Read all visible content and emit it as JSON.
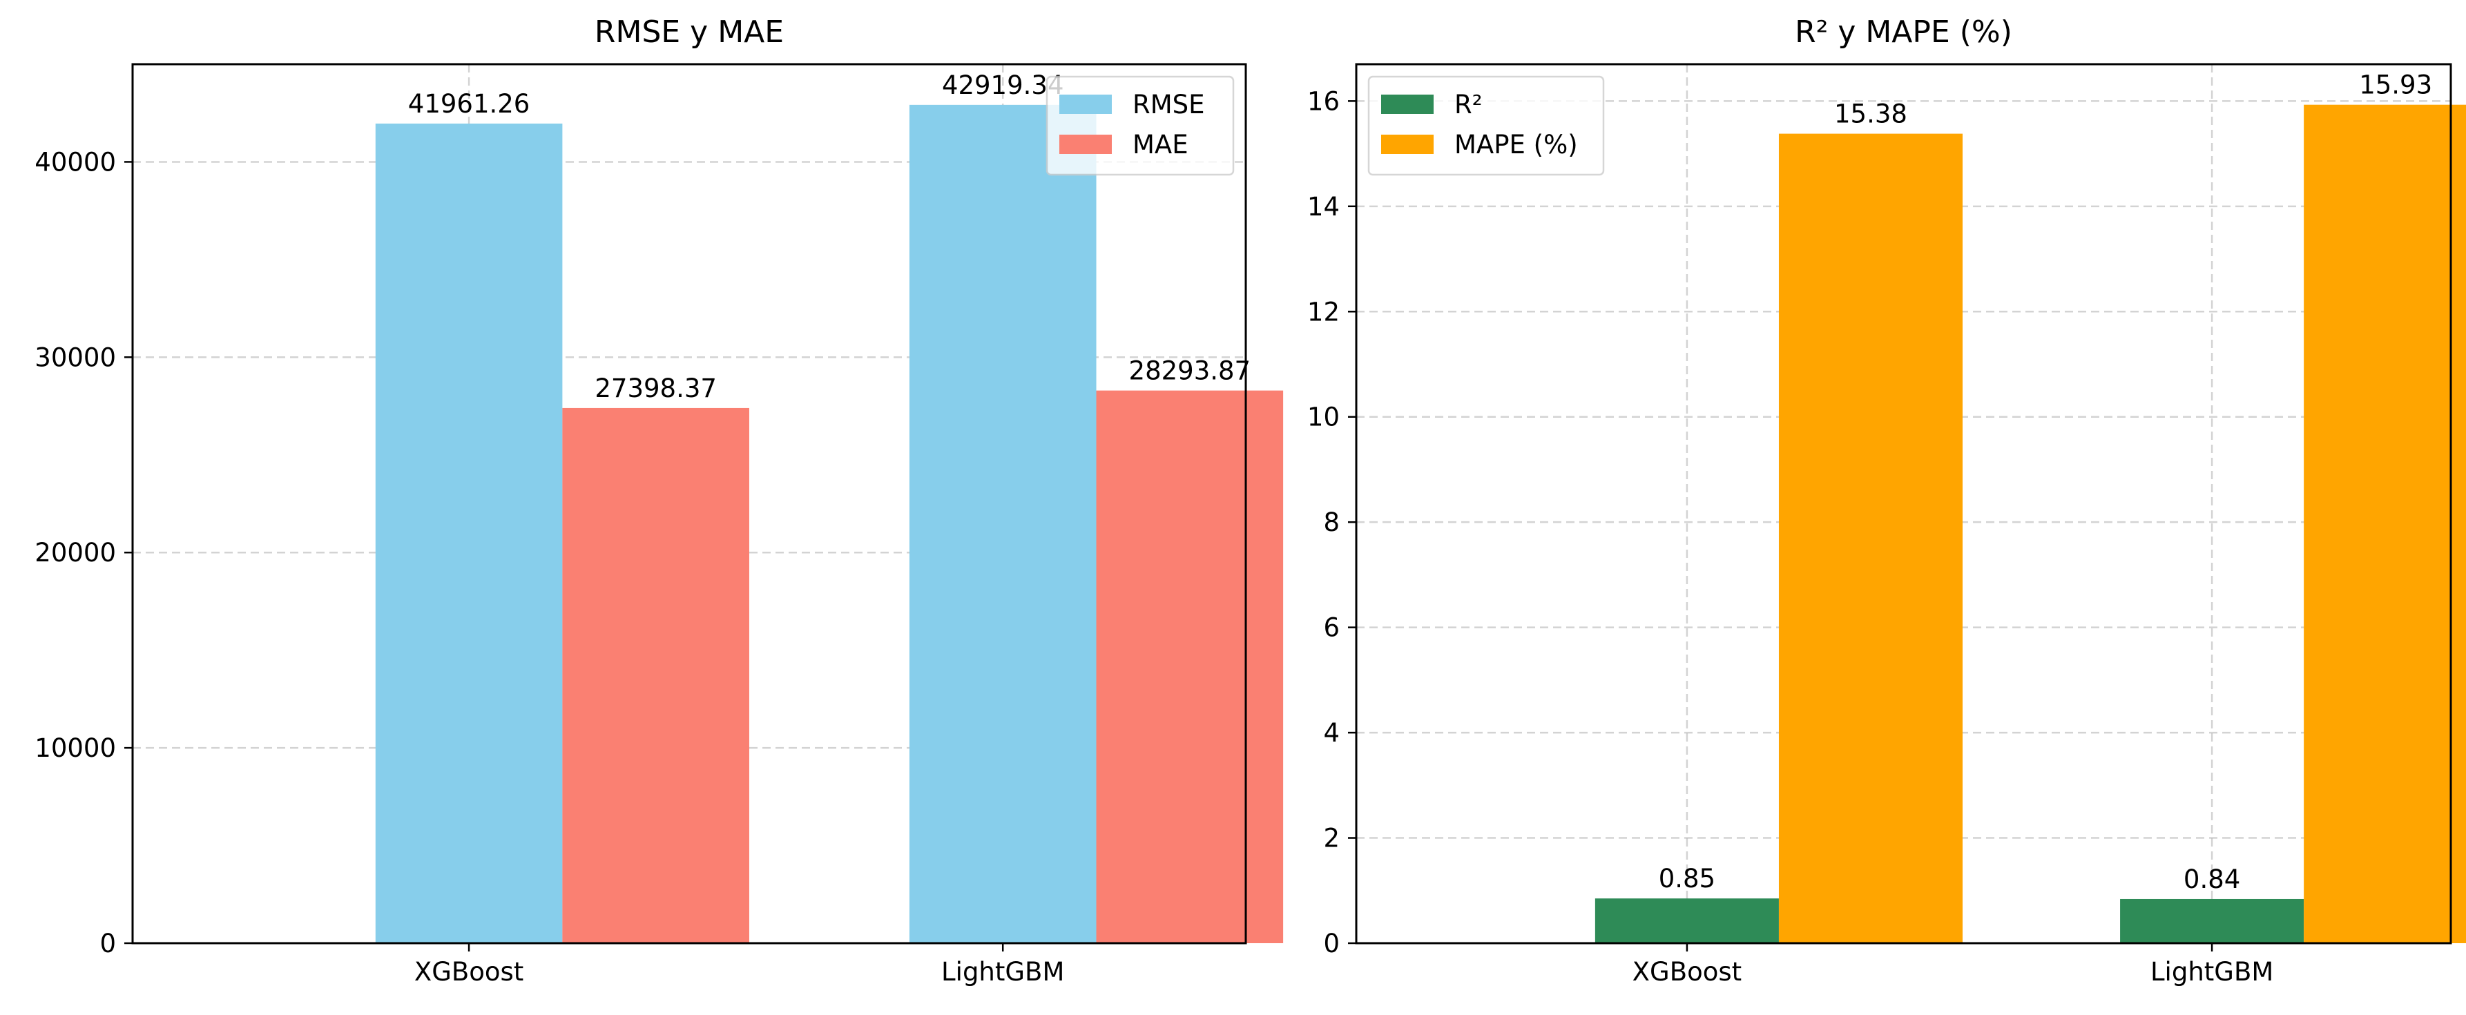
{
  "chart_data": [
    {
      "type": "bar",
      "title": "RMSE y MAE",
      "xlabel": "",
      "ylabel": "",
      "categories": [
        "XGBoost",
        "LightGBM"
      ],
      "series": [
        {
          "name": "RMSE",
          "values": [
            41961.26,
            42919.34
          ],
          "labels": [
            "41961.26",
            "42919.34"
          ],
          "color": "#87CEEB"
        },
        {
          "name": "MAE",
          "values": [
            27398.37,
            28293.87
          ],
          "labels": [
            "27398.37",
            "28293.87"
          ],
          "color": "#FA8072"
        }
      ],
      "ylim": [
        0,
        45000
      ],
      "yticks": [
        0,
        10000,
        20000,
        30000,
        40000
      ],
      "ytick_labels": [
        "0",
        "10000",
        "20000",
        "30000",
        "40000"
      ],
      "grid": true,
      "legend_position": "upper-right"
    },
    {
      "type": "bar",
      "title": "R² y MAPE (%)",
      "xlabel": "",
      "ylabel": "",
      "categories": [
        "XGBoost",
        "LightGBM"
      ],
      "series": [
        {
          "name": "R²",
          "values": [
            0.85,
            0.84
          ],
          "labels": [
            "0.85",
            "0.84"
          ],
          "color": "#2E8B57"
        },
        {
          "name": "MAPE (%)",
          "values": [
            15.38,
            15.93
          ],
          "labels": [
            "15.38",
            "15.93"
          ],
          "color": "#FFA500"
        }
      ],
      "ylim": [
        0,
        16.7
      ],
      "yticks": [
        0,
        2,
        4,
        6,
        8,
        10,
        12,
        14,
        16
      ],
      "ytick_labels": [
        "0",
        "2",
        "4",
        "6",
        "8",
        "10",
        "12",
        "14",
        "16"
      ],
      "grid": true,
      "legend_position": "upper-left"
    }
  ]
}
